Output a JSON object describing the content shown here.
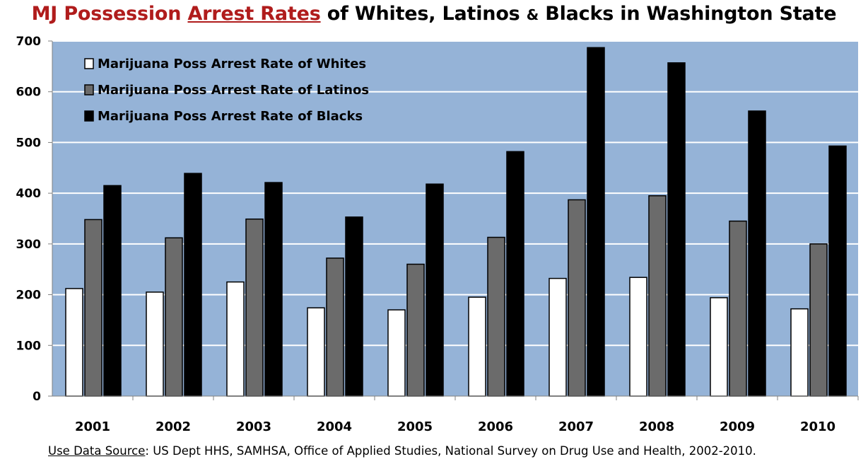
{
  "title": {
    "part1": "MJ Possession ",
    "part2": "Arrest Rates",
    "part3": " of Whites, Latinos ",
    "amp": "&",
    "part4": " Blacks in Washington State"
  },
  "source": {
    "label": "Use Data Source",
    "text": ": US Dept HHS, SAMHSA, Office of Applied Studies, National Survey on Drug Use and Health, 2002-2010."
  },
  "colors": {
    "plot_bg": "#95b3d7",
    "gridline": "#ffffff",
    "whites": "#ffffff",
    "latinos": "#6b6b6b",
    "blacks": "#000000",
    "title_red": "#b01c1c"
  },
  "chart_data": {
    "type": "bar",
    "categories": [
      "2001",
      "2002",
      "2003",
      "2004",
      "2005",
      "2006",
      "2007",
      "2008",
      "2009",
      "2010"
    ],
    "series": [
      {
        "name": "Marijuana Poss Arrest Rate of Whites",
        "values": [
          212,
          205,
          225,
          174,
          170,
          195,
          232,
          234,
          194,
          172
        ]
      },
      {
        "name": "Marijuana Poss Arrest Rate of Latinos",
        "values": [
          348,
          312,
          349,
          272,
          260,
          313,
          387,
          395,
          345,
          300
        ]
      },
      {
        "name": "Marijuana Poss Arrest Rate of Blacks",
        "values": [
          415,
          439,
          421,
          353,
          418,
          482,
          687,
          657,
          562,
          493
        ]
      }
    ],
    "ylim": [
      0,
      700
    ],
    "yticks": [
      "0",
      "100",
      "200",
      "300",
      "400",
      "500",
      "600",
      "700"
    ],
    "grid": true,
    "legend_position": "top-left"
  }
}
